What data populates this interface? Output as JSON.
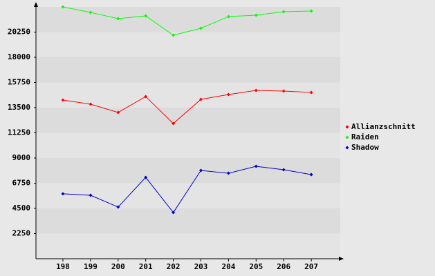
{
  "chart_data": {
    "type": "line",
    "categories": [
      "198",
      "199",
      "200",
      "201",
      "202",
      "203",
      "204",
      "205",
      "206",
      "207"
    ],
    "series": [
      {
        "name": "Allianzschnitt",
        "color": "#ff0000",
        "values": [
          14180,
          13810,
          13070,
          14490,
          12080,
          14240,
          14670,
          15040,
          14980,
          14860
        ]
      },
      {
        "name": "Raiden",
        "color": "#00ff00",
        "values": [
          22500,
          22010,
          21450,
          21700,
          19970,
          20590,
          21640,
          21760,
          22070,
          22130
        ]
      },
      {
        "name": "Shadow",
        "color": "#0000cc",
        "values": [
          5800,
          5670,
          4620,
          7270,
          4130,
          7890,
          7640,
          8260,
          7950,
          7520
        ]
      }
    ],
    "ylim": [
      0,
      22500
    ],
    "yticks": [
      2250,
      4500,
      6750,
      9000,
      11250,
      13500,
      15750,
      18000,
      20250
    ],
    "grid": true,
    "legend": "right"
  }
}
